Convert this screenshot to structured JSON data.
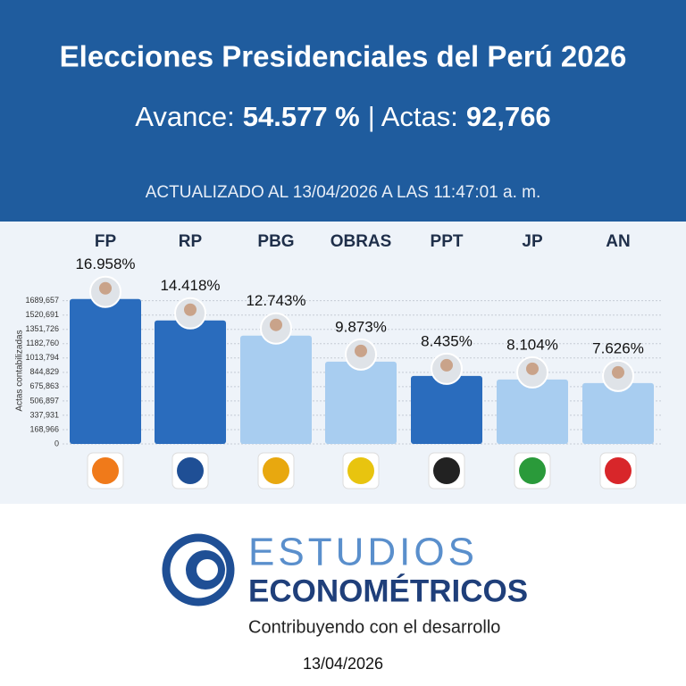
{
  "header": {
    "title": "Elecciones Presidenciales del Perú 2026",
    "progress_label": "Avance:",
    "progress_value": "54.577 %",
    "actas_label": "| Actas:",
    "actas_value": "92,766",
    "updated": "ACTUALIZADO AL 13/04/2026 A LAS 11:47:01 a. m."
  },
  "chart_data": {
    "type": "bar",
    "y_label": "Actas contabilizadas",
    "categories": [
      "FP",
      "RP",
      "PBG",
      "OBRAS",
      "PPT",
      "JP",
      "AN"
    ],
    "values": [
      1710000,
      1457000,
      1278000,
      971000,
      802000,
      760000,
      718000
    ],
    "value_labels": [
      "16.958%",
      "14.418%",
      "12.743%",
      "9.873%",
      "8.435%",
      "8.104%",
      "7.626%"
    ],
    "colors": [
      "#2a6cbd",
      "#2a6cbd",
      "#a8cdf0",
      "#a8cdf0",
      "#2a6cbd",
      "#a8cdf0",
      "#a8cdf0"
    ],
    "ylim": [
      0,
      1760000
    ],
    "yticks": [
      0,
      {
        "value": 168966,
        "label": "168,966"
      },
      {
        "value": 337931,
        "label": "337,931"
      },
      {
        "value": 506897,
        "label": "506,897"
      },
      {
        "value": 675863,
        "label": "675,863"
      },
      {
        "value": 844829,
        "label": "844,829"
      },
      {
        "value": 1013794,
        "label": "1013,794"
      },
      {
        "value": 1182760,
        "label": "1182,760"
      },
      {
        "value": 1351726,
        "label": "1351,726"
      },
      {
        "value": 1520691,
        "label": "1520,691"
      },
      {
        "value": 1689657,
        "label": "1689,657"
      }
    ],
    "grid": true
  },
  "footer": {
    "brand_top": "ESTUDIOS",
    "brand_bottom": "ECONOMÉTRICOS",
    "tagline": "Contribuyendo con el desarrollo",
    "date": "13/04/2026"
  }
}
